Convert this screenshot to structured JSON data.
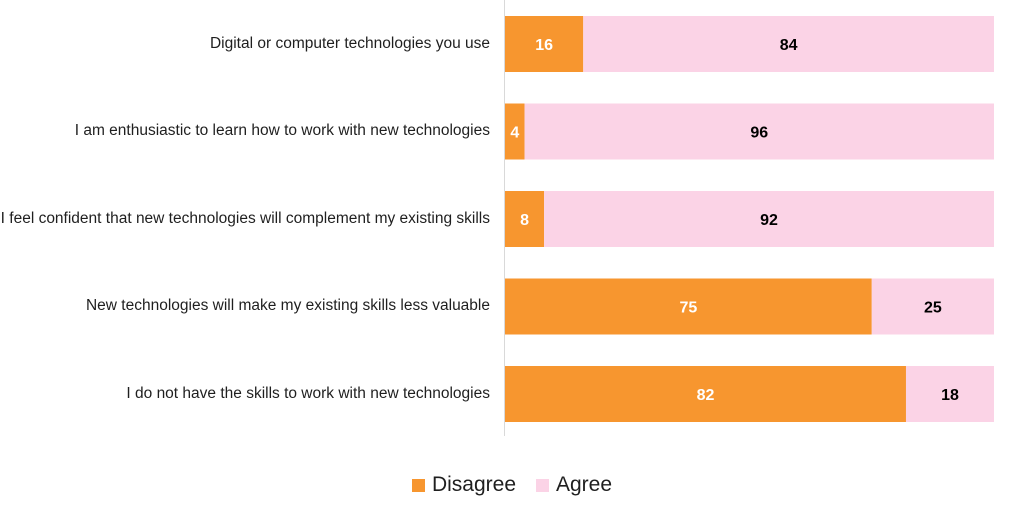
{
  "chart_data": {
    "type": "bar",
    "orientation": "horizontal",
    "stacked": true,
    "categories": [
      "Digital or computer technologies you use",
      "I am enthusiastic to learn how to work with new technologies",
      "I feel confident that new technologies will complement my existing skills",
      "New technologies will make my existing skills less valuable",
      "I do not have the skills to work with new technologies"
    ],
    "series": [
      {
        "name": "Disagree",
        "values": [
          16,
          4,
          8,
          75,
          82
        ],
        "color": "#F7962F",
        "label_color": "#ffffff"
      },
      {
        "name": "Agree",
        "values": [
          84,
          96,
          92,
          25,
          18
        ],
        "color": "#FBD3E6",
        "label_color": "#000000"
      }
    ],
    "xlim": [
      0,
      100
    ],
    "legend_position": "bottom-center"
  }
}
